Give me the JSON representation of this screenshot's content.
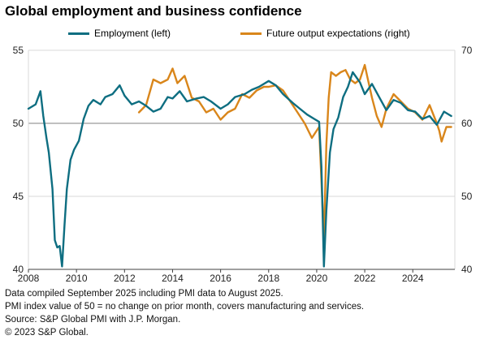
{
  "title": "Global employment and business confidence",
  "legend": {
    "employment": "Employment (left)",
    "future": "Future output expectations (right)"
  },
  "colors": {
    "employment": "#0e6e81",
    "future": "#d9861b",
    "grid": "#d9d9d9",
    "fifty_line": "#808080",
    "axis": "#404040"
  },
  "notes": [
    "Data compiled September 2025 including PMI data to August 2025.",
    "PMI index value of 50 = no change on prior month, covers manufacturing and services.",
    "Source: S&P Global PMI with J.P. Morgan.",
    "© 2023 S&P Global."
  ],
  "chart_data": {
    "type": "line",
    "x_axis": {
      "range": [
        2008.0,
        2025.75
      ],
      "tick_values": [
        2008,
        2010,
        2012,
        2014,
        2016,
        2018,
        2020,
        2022,
        2024
      ],
      "tick_labels": [
        "2008",
        "2010",
        "2012",
        "2014",
        "2016",
        "2018",
        "2020",
        "2022",
        "2024"
      ]
    },
    "y_left": {
      "range": [
        40,
        55
      ],
      "ticks": [
        40,
        45,
        50,
        55
      ],
      "reference_line": 50
    },
    "y_right": {
      "range": [
        40,
        70
      ],
      "ticks": [
        40,
        50,
        60,
        70
      ]
    },
    "grid": "horizontal",
    "legend_position": "top",
    "series": [
      {
        "name": "Employment (left)",
        "axis": "left",
        "x": [
          2008.0,
          2008.3,
          2008.5,
          2008.62,
          2008.75,
          2008.85,
          2009.0,
          2009.1,
          2009.2,
          2009.3,
          2009.4,
          2009.5,
          2009.6,
          2009.75,
          2009.9,
          2010.1,
          2010.3,
          2010.5,
          2010.7,
          2011.0,
          2011.2,
          2011.5,
          2011.8,
          2012.0,
          2012.3,
          2012.6,
          2012.9,
          2013.2,
          2013.5,
          2013.8,
          2014.0,
          2014.3,
          2014.6,
          2015.0,
          2015.3,
          2015.6,
          2016.0,
          2016.3,
          2016.6,
          2017.0,
          2017.3,
          2017.6,
          2018.0,
          2018.3,
          2018.6,
          2019.0,
          2019.3,
          2019.6,
          2019.9,
          2020.1,
          2020.2,
          2020.3,
          2020.4,
          2020.55,
          2020.7,
          2020.9,
          2021.1,
          2021.3,
          2021.5,
          2021.8,
          2022.0,
          2022.3,
          2022.6,
          2022.9,
          2023.2,
          2023.5,
          2023.8,
          2024.1,
          2024.4,
          2024.7,
          2025.0,
          2025.3,
          2025.6
        ],
        "y": [
          51.0,
          51.3,
          52.2,
          50.5,
          49.0,
          48.0,
          45.5,
          42.0,
          41.5,
          41.6,
          40.2,
          43.0,
          45.5,
          47.5,
          48.2,
          48.8,
          50.3,
          51.2,
          51.6,
          51.3,
          51.8,
          52.0,
          52.6,
          51.9,
          51.3,
          51.5,
          51.2,
          50.8,
          51.0,
          51.8,
          51.7,
          52.2,
          51.5,
          51.7,
          51.8,
          51.5,
          51.0,
          51.3,
          51.8,
          52.0,
          52.3,
          52.5,
          52.9,
          52.6,
          52.0,
          51.4,
          51.0,
          50.6,
          50.3,
          50.1,
          47.0,
          40.2,
          44.0,
          48.0,
          49.6,
          50.4,
          51.8,
          52.5,
          53.5,
          52.8,
          52.0,
          52.7,
          51.8,
          50.9,
          51.6,
          51.4,
          50.9,
          50.8,
          50.3,
          50.5,
          49.9,
          50.8,
          50.5
        ]
      },
      {
        "name": "Future output expectations (right)",
        "axis": "right",
        "x": [
          2012.6,
          2012.9,
          2013.2,
          2013.5,
          2013.8,
          2014.0,
          2014.2,
          2014.5,
          2014.8,
          2015.1,
          2015.4,
          2015.7,
          2016.0,
          2016.3,
          2016.6,
          2016.9,
          2017.2,
          2017.5,
          2017.8,
          2018.0,
          2018.3,
          2018.6,
          2018.9,
          2019.2,
          2019.5,
          2019.8,
          2020.0,
          2020.1,
          2020.2,
          2020.3,
          2020.4,
          2020.5,
          2020.6,
          2020.8,
          2021.0,
          2021.2,
          2021.4,
          2021.6,
          2021.8,
          2022.0,
          2022.1,
          2022.3,
          2022.5,
          2022.7,
          2022.9,
          2023.2,
          2023.5,
          2023.8,
          2024.1,
          2024.4,
          2024.7,
          2025.0,
          2025.1,
          2025.2,
          2025.4,
          2025.6
        ],
        "y": [
          61.5,
          62.5,
          66.0,
          65.5,
          66.0,
          67.5,
          65.5,
          66.5,
          63.5,
          63.0,
          61.5,
          62.0,
          60.5,
          61.5,
          62.0,
          64.0,
          63.5,
          64.5,
          65.0,
          65.0,
          65.2,
          64.5,
          63.0,
          61.5,
          60.0,
          58.0,
          59.0,
          59.5,
          52.0,
          44.0,
          57.0,
          63.5,
          67.0,
          66.5,
          67.0,
          67.3,
          66.0,
          65.5,
          66.0,
          68.0,
          66.5,
          63.5,
          61.0,
          59.5,
          62.0,
          64.0,
          63.0,
          62.0,
          61.5,
          60.5,
          62.5,
          60.0,
          59.0,
          57.5,
          59.5,
          59.5
        ]
      }
    ]
  }
}
